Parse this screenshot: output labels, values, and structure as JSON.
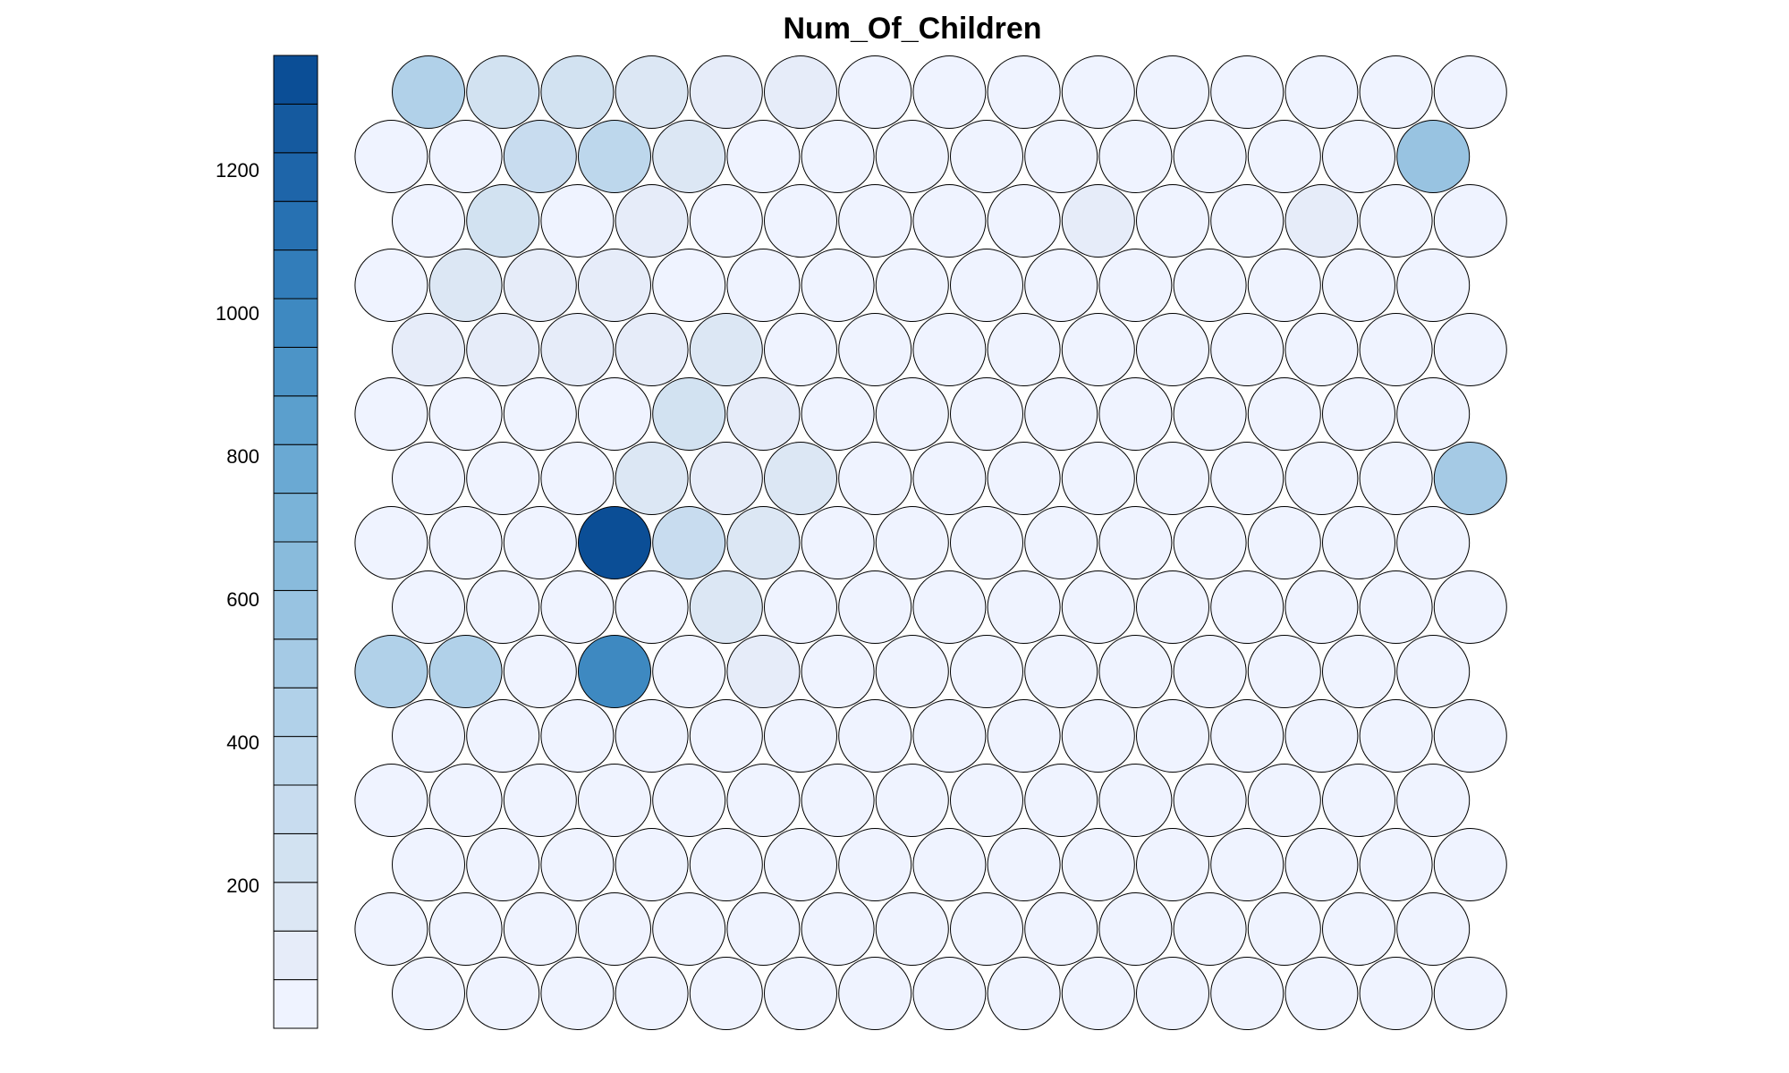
{
  "chart_data": {
    "type": "heatmap",
    "subtype": "som-hexagonal-node-map",
    "title": "Num_Of_Children",
    "grid": {
      "rows": 15,
      "cols": 15,
      "topology": "hexagonal"
    },
    "legend": {
      "placement": "left",
      "min": 0,
      "max": 1360,
      "ticks": [
        200,
        400,
        600,
        800,
        1000,
        1200
      ],
      "palette": [
        "#eff3ff",
        "#e6ecf9",
        "#dce7f4",
        "#d2e2f1",
        "#c8dcef",
        "#bdd7ec",
        "#b1d1e9",
        "#a5cae5",
        "#98c3e1",
        "#89bbdc",
        "#7ab3d8",
        "#6aa9d3",
        "#5b9fcd",
        "#4c94c7",
        "#3e89c1",
        "#327dba",
        "#2771b2",
        "#1e65a9",
        "#155a9f",
        "#0b4e96"
      ]
    },
    "rows_top_to_bottom": [
      [
        440,
        260,
        230,
        180,
        120,
        110,
        30,
        30,
        30,
        30,
        30,
        30,
        30,
        30,
        30
      ],
      [
        30,
        30,
        330,
        360,
        180,
        30,
        30,
        30,
        30,
        30,
        30,
        30,
        30,
        30,
        560
      ],
      [
        30,
        270,
        30,
        100,
        30,
        30,
        30,
        30,
        30,
        100,
        30,
        30,
        100,
        30,
        30
      ],
      [
        30,
        160,
        100,
        100,
        30,
        30,
        30,
        30,
        30,
        30,
        30,
        30,
        30,
        30,
        30
      ],
      [
        100,
        100,
        100,
        100,
        160,
        30,
        30,
        30,
        30,
        30,
        30,
        30,
        30,
        30,
        30
      ],
      [
        30,
        30,
        30,
        30,
        230,
        100,
        30,
        30,
        30,
        30,
        30,
        30,
        30,
        30,
        30
      ],
      [
        30,
        30,
        30,
        160,
        100,
        200,
        30,
        30,
        30,
        30,
        30,
        30,
        30,
        30,
        500
      ],
      [
        30,
        30,
        30,
        1360,
        330,
        180,
        30,
        30,
        30,
        30,
        30,
        30,
        30,
        30,
        30
      ],
      [
        30,
        30,
        30,
        30,
        160,
        30,
        30,
        30,
        30,
        30,
        30,
        30,
        30,
        30,
        30
      ],
      [
        420,
        460,
        30,
        960,
        30,
        100,
        30,
        30,
        30,
        30,
        30,
        30,
        30,
        30,
        30
      ],
      [
        30,
        30,
        30,
        30,
        30,
        30,
        30,
        30,
        30,
        30,
        30,
        30,
        30,
        30,
        30
      ],
      [
        30,
        30,
        30,
        30,
        30,
        30,
        30,
        30,
        30,
        30,
        30,
        30,
        30,
        30,
        30
      ],
      [
        30,
        30,
        30,
        30,
        30,
        30,
        30,
        30,
        30,
        30,
        30,
        30,
        30,
        30,
        30
      ],
      [
        30,
        30,
        30,
        30,
        30,
        30,
        30,
        30,
        30,
        30,
        30,
        30,
        30,
        30,
        30
      ],
      [
        30,
        30,
        30,
        30,
        30,
        30,
        30,
        30,
        30,
        30,
        30,
        30,
        30,
        30,
        30
      ]
    ]
  }
}
